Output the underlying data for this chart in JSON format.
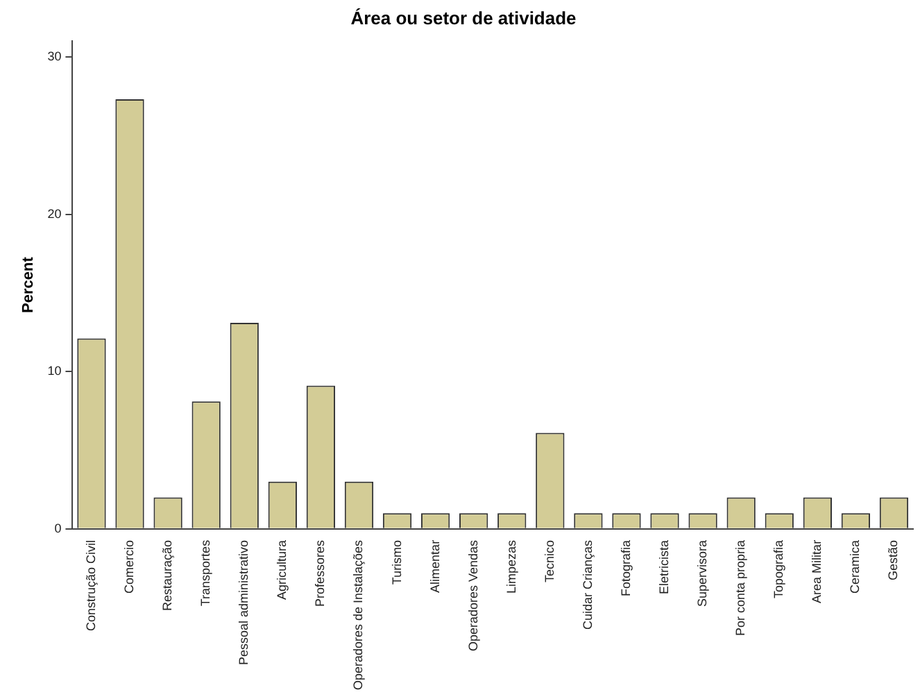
{
  "chart_data": {
    "type": "bar",
    "title": "Área ou setor de atividade",
    "ylabel": "Percent",
    "categories": [
      "Construção Civil",
      "Comercio",
      "Restauração",
      "Transportes",
      "Pessoal administrativo",
      "Agricultura",
      "Professores",
      "Operadores de Instalações",
      "Turismo",
      "Alimentar",
      "Operadores Vendas",
      "Limpezas",
      "Tecnico",
      "Cuidar Crianças",
      "Fotografia",
      "Eletricista",
      "Supervisora",
      "Por conta propria",
      "Topografia",
      "Area Militar",
      "Ceramica",
      "Gestão"
    ],
    "values": [
      12.1,
      27.3,
      2.0,
      8.1,
      13.1,
      3.0,
      9.1,
      3.0,
      1.0,
      1.0,
      1.0,
      1.0,
      6.1,
      1.0,
      1.0,
      1.0,
      1.0,
      2.0,
      1.0,
      2.0,
      1.0,
      2.0
    ],
    "color": "#d3cc96",
    "ylim": [
      0,
      31
    ],
    "yticks": [
      0,
      10,
      20,
      30
    ],
    "grid": false
  }
}
